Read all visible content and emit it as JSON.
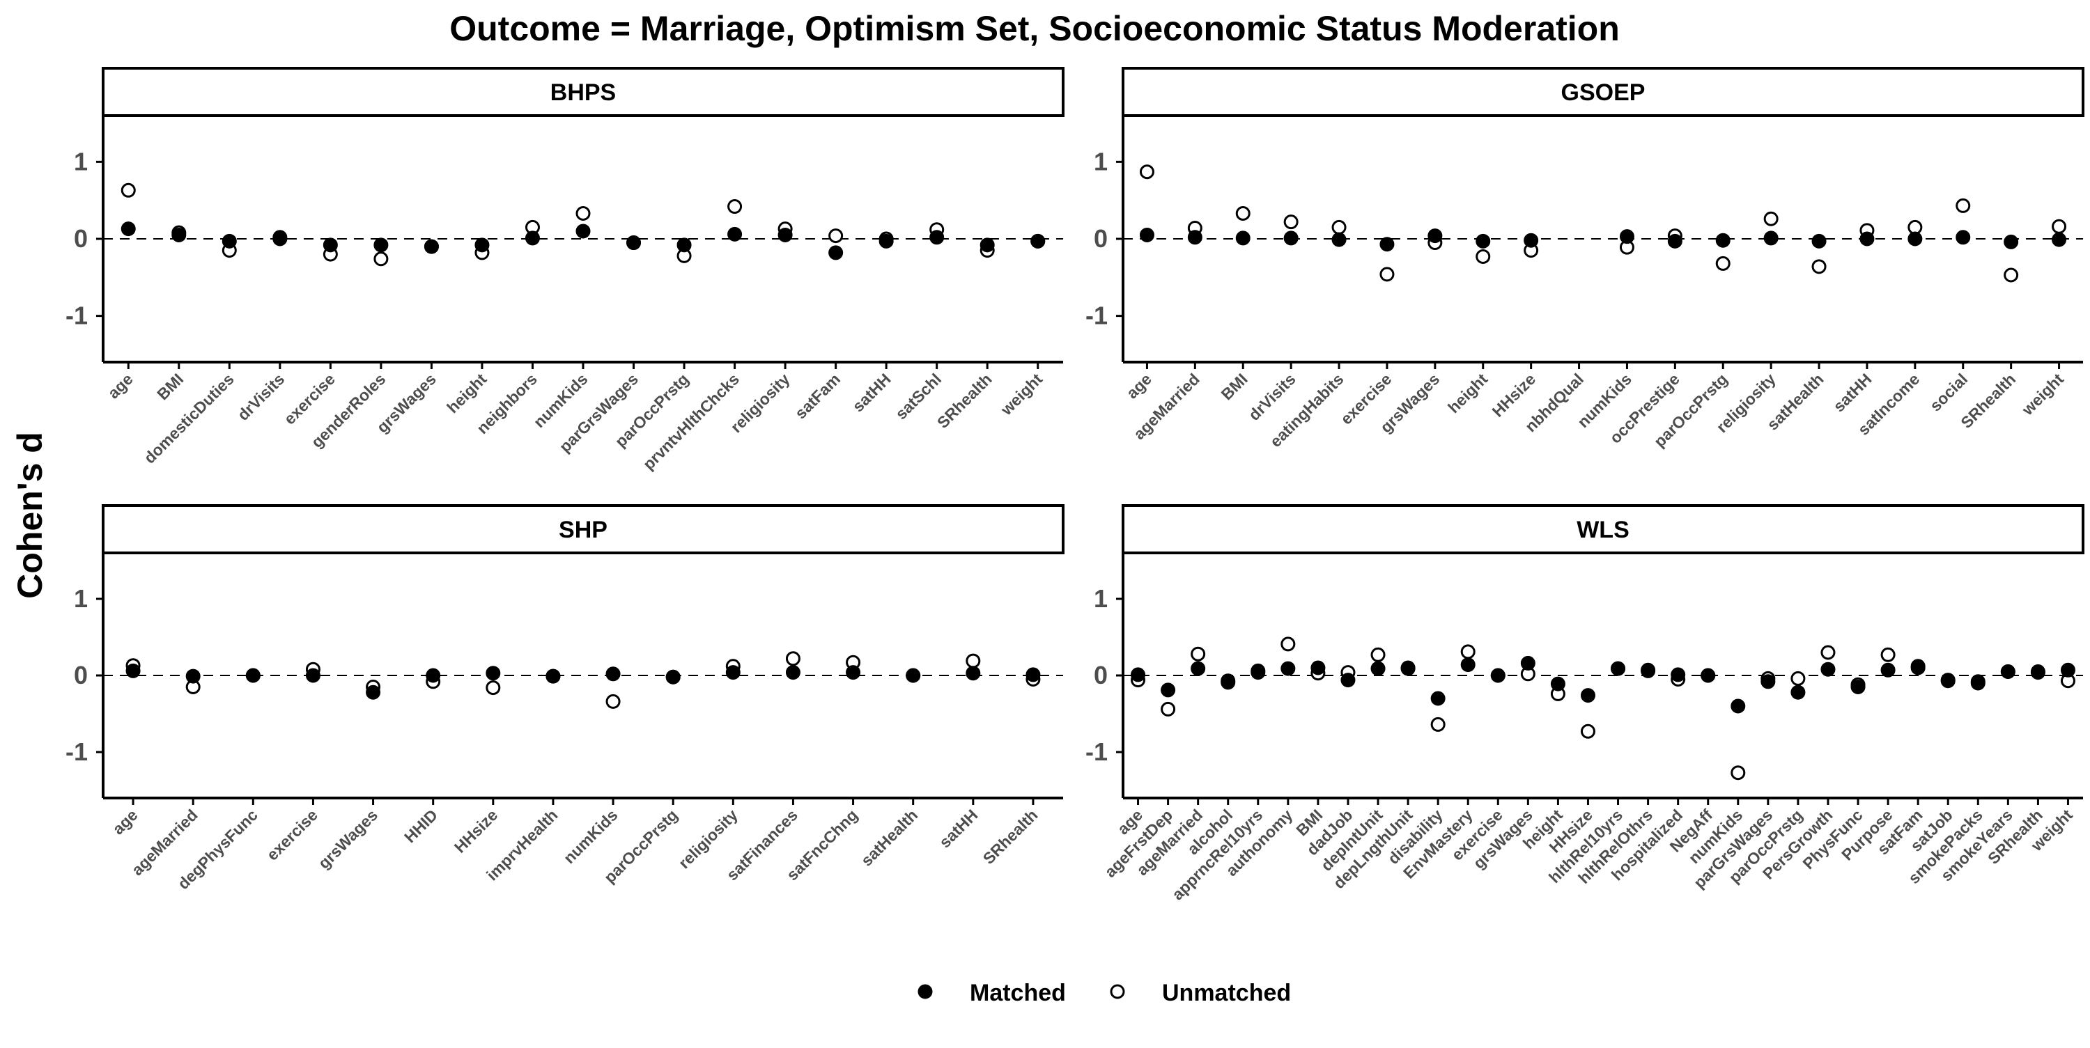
{
  "title": "Outcome = Marriage, Optimism Set, Socioeconomic Status Moderation",
  "ylabel": "Cohen's d",
  "legend": {
    "position": "bottom",
    "items": [
      {
        "label": "Matched",
        "marker": "filled-circle"
      },
      {
        "label": "Unmatched",
        "marker": "open-circle"
      }
    ]
  },
  "colors": {
    "matched": "#000000",
    "unmatched_fill": "#ffffff",
    "axis": "#000000",
    "strip_fill": "#ffffff",
    "tick_label": "#4d4d4d"
  },
  "chart_data": [
    {
      "type": "scatter",
      "panel": "BHPS",
      "ylim": [
        -1.6,
        1.6
      ],
      "yticks": [
        1,
        0,
        -1
      ],
      "reference_line": 0,
      "categories": [
        "age",
        "BMI",
        "domesticDuties",
        "drVisits",
        "exercise",
        "genderRoles",
        "grsWages",
        "height",
        "neighbors",
        "numKids",
        "parGrsWages",
        "parOccPrstg",
        "prvntvHlthChcks",
        "religiosity",
        "satFam",
        "satHH",
        "satSchl",
        "SRhealth",
        "weight"
      ],
      "series": [
        {
          "name": "Matched",
          "values": [
            0.13,
            0.05,
            -0.03,
            0.0,
            -0.08,
            -0.08,
            -0.1,
            -0.08,
            0.01,
            0.1,
            -0.05,
            -0.08,
            0.06,
            0.05,
            -0.18,
            -0.03,
            0.02,
            -0.08,
            -0.03
          ]
        },
        {
          "name": "Unmatched",
          "values": [
            0.63,
            0.08,
            -0.15,
            0.02,
            -0.2,
            -0.26,
            -0.1,
            -0.18,
            0.15,
            0.33,
            -0.05,
            -0.22,
            0.42,
            0.13,
            0.04,
            0.0,
            0.12,
            -0.15,
            -0.03
          ]
        }
      ]
    },
    {
      "type": "scatter",
      "panel": "GSOEP",
      "ylim": [
        -1.6,
        1.6
      ],
      "yticks": [
        1,
        0,
        -1
      ],
      "reference_line": 0,
      "categories": [
        "age",
        "ageMarried",
        "BMI",
        "drVisits",
        "eatingHabits",
        "exercise",
        "grsWages",
        "height",
        "HHsize",
        "nbhdQual",
        "numKids",
        "occPrestige",
        "parOccPrstg",
        "religiosity",
        "satHealth",
        "satHH",
        "satIncome",
        "social",
        "SRhealth",
        "weight"
      ],
      "series": [
        {
          "name": "Matched",
          "values": [
            0.05,
            0.02,
            0.01,
            0.01,
            -0.01,
            -0.07,
            0.04,
            -0.03,
            -0.02,
            null,
            0.03,
            -0.03,
            -0.02,
            0.01,
            -0.03,
            0.0,
            0.0,
            0.02,
            -0.04,
            -0.01
          ]
        },
        {
          "name": "Unmatched",
          "values": [
            0.87,
            0.14,
            0.33,
            0.22,
            0.15,
            -0.46,
            -0.05,
            -0.23,
            -0.15,
            null,
            -0.11,
            0.04,
            -0.32,
            0.26,
            -0.36,
            0.11,
            0.15,
            0.43,
            -0.47,
            0.16
          ]
        }
      ]
    },
    {
      "type": "scatter",
      "panel": "SHP",
      "ylim": [
        -1.6,
        1.6
      ],
      "yticks": [
        1,
        0,
        -1
      ],
      "reference_line": 0,
      "categories": [
        "age",
        "ageMarried",
        "degPhysFunc",
        "exercise",
        "grsWages",
        "HHID",
        "HHsize",
        "imprvHealth",
        "numKids",
        "parOccPrstg",
        "religiosity",
        "satFinances",
        "satFncChng",
        "satHealth",
        "satHH",
        "SRhealth"
      ],
      "series": [
        {
          "name": "Matched",
          "values": [
            0.06,
            -0.01,
            0.0,
            0.0,
            -0.22,
            0.0,
            0.03,
            -0.01,
            0.02,
            -0.02,
            0.04,
            0.04,
            0.04,
            0.0,
            0.03,
            0.01
          ]
        },
        {
          "name": "Unmatched",
          "values": [
            0.13,
            -0.15,
            0.0,
            0.08,
            -0.15,
            -0.08,
            -0.16,
            -0.01,
            -0.34,
            -0.02,
            0.12,
            0.22,
            0.17,
            0.0,
            0.19,
            -0.05
          ]
        }
      ]
    },
    {
      "type": "scatter",
      "panel": "WLS",
      "ylim": [
        -1.6,
        1.6
      ],
      "yticks": [
        1,
        0,
        -1
      ],
      "reference_line": 0,
      "categories": [
        "age",
        "ageFrstDep",
        "ageMarried",
        "alcohol",
        "apprncRel10yrs",
        "authonomy",
        "BMI",
        "dadJob",
        "depIntUnit",
        "depLngthUnit",
        "disability",
        "EnvMastery",
        "exercise",
        "grsWages",
        "height",
        "HHsize",
        "hlthRel10yrs",
        "hlthRelOthrs",
        "hospitalized",
        "NegAff",
        "numKids",
        "parGrsWages",
        "parOccPrstg",
        "PersGrowth",
        "PhysFunc",
        "Purpose",
        "satFam",
        "satJob",
        "smokePacks",
        "smokeYears",
        "SRhealth",
        "weight"
      ],
      "series": [
        {
          "name": "Matched",
          "values": [
            0.01,
            -0.19,
            0.09,
            -0.09,
            0.04,
            0.09,
            0.1,
            -0.06,
            0.09,
            0.09,
            -0.3,
            0.14,
            0.0,
            0.16,
            -0.11,
            -0.26,
            0.09,
            0.07,
            0.01,
            0.0,
            -0.4,
            -0.08,
            -0.22,
            0.08,
            -0.15,
            0.07,
            0.12,
            -0.07,
            -0.1,
            0.05,
            0.04,
            0.07
          ]
        },
        {
          "name": "Unmatched",
          "values": [
            -0.06,
            -0.44,
            0.28,
            -0.07,
            0.06,
            0.41,
            0.03,
            0.04,
            0.27,
            0.1,
            -0.64,
            0.31,
            0.0,
            0.02,
            -0.24,
            -0.73,
            0.09,
            0.06,
            -0.05,
            0.0,
            -1.27,
            -0.04,
            -0.04,
            0.3,
            -0.12,
            0.27,
            0.1,
            -0.06,
            -0.08,
            0.05,
            0.05,
            -0.07
          ]
        }
      ]
    }
  ]
}
